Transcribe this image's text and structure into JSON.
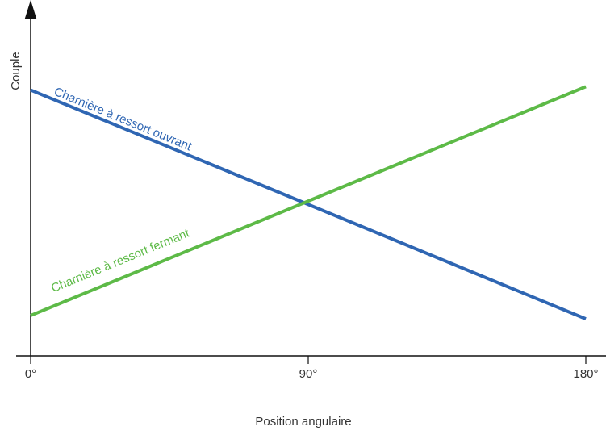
{
  "chart_data": {
    "type": "line",
    "title": "",
    "xlabel": "Position angulaire",
    "ylabel": "Couple",
    "x_ticks": [
      {
        "value": 0,
        "label": "0°"
      },
      {
        "value": 90,
        "label": "90°"
      },
      {
        "value": 180,
        "label": "180°"
      }
    ],
    "xlim": [
      0,
      180
    ],
    "ylim": [
      0,
      1
    ],
    "grid": false,
    "series": [
      {
        "name": "Charnière à ressort ouvrant",
        "color": "#2f66b3",
        "x": [
          0,
          180
        ],
        "y": [
          0.79,
          0.11
        ]
      },
      {
        "name": "Charnière à ressort fermant",
        "color": "#5dba47",
        "x": [
          0,
          180
        ],
        "y": [
          0.12,
          0.8
        ]
      }
    ]
  }
}
